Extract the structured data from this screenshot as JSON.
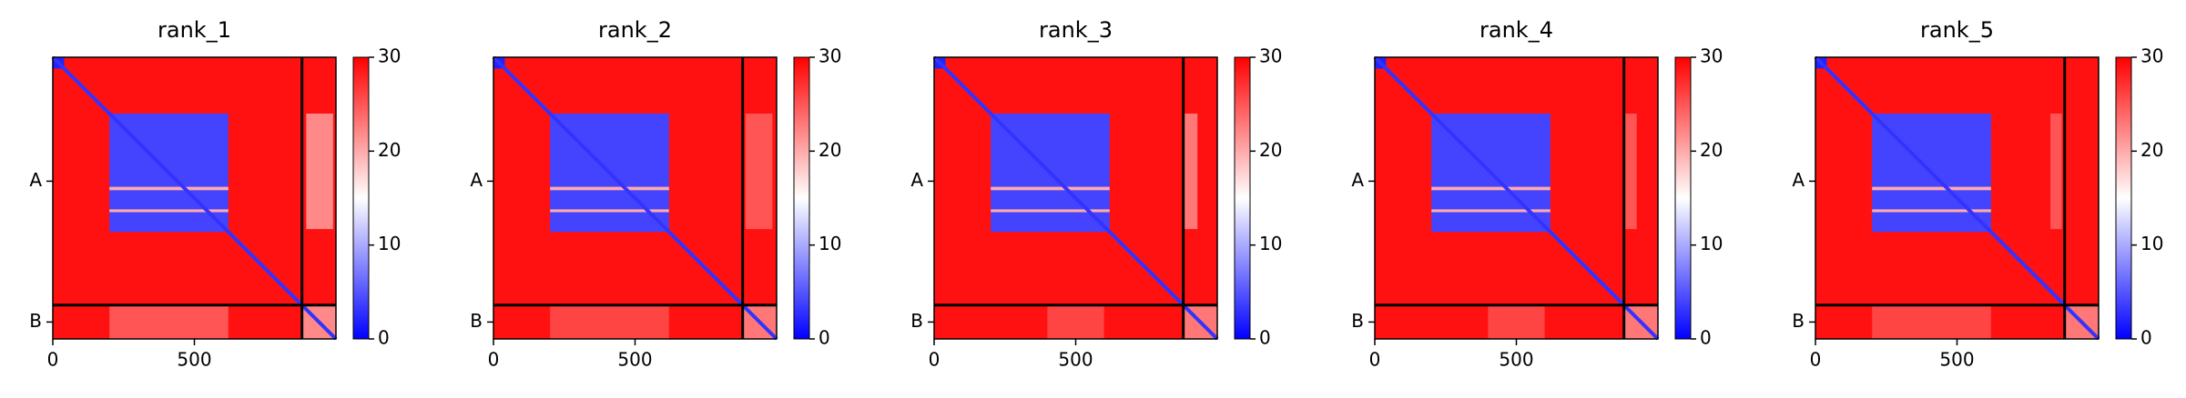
{
  "chart_data": [
    {
      "type": "heatmap",
      "title": "rank_1",
      "xlim": [
        0,
        1000
      ],
      "ylim": [
        1000,
        0
      ],
      "xticks": [
        0,
        500
      ],
      "yticks": [
        {
          "value": 440,
          "label": "A"
        },
        {
          "value": 940,
          "label": "B"
        }
      ],
      "colormap": "bwr",
      "clim": [
        0,
        30
      ],
      "cticks": [
        0,
        10,
        20,
        30
      ],
      "chain_breaks": [
        880
      ],
      "blocks": [
        {
          "x": [
            0,
            1000
          ],
          "y": [
            0,
            1000
          ],
          "value": 29
        },
        {
          "x": [
            0,
            40
          ],
          "y": [
            0,
            40
          ],
          "value": 2
        },
        {
          "x": [
            200,
            620
          ],
          "y": [
            200,
            620
          ],
          "value": 4
        },
        {
          "x": [
            200,
            620
          ],
          "y": [
            460,
            472
          ],
          "value": 20
        },
        {
          "x": [
            200,
            620
          ],
          "y": [
            540,
            550
          ],
          "value": 20
        },
        {
          "x": [
            895,
            990
          ],
          "y": [
            200,
            610
          ],
          "value": 22
        },
        {
          "x": [
            200,
            620
          ],
          "y": [
            880,
            1000
          ],
          "value": 25
        },
        {
          "x": [
            880,
            1000
          ],
          "y": [
            880,
            1000
          ],
          "value": 22
        }
      ],
      "diagonal": 3
    },
    {
      "type": "heatmap",
      "title": "rank_2",
      "xlim": [
        0,
        1000
      ],
      "ylim": [
        1000,
        0
      ],
      "xticks": [
        0,
        500
      ],
      "yticks": [
        {
          "value": 440,
          "label": "A"
        },
        {
          "value": 940,
          "label": "B"
        }
      ],
      "colormap": "bwr",
      "clim": [
        0,
        30
      ],
      "cticks": [
        0,
        10,
        20,
        30
      ],
      "chain_breaks": [
        880
      ],
      "blocks": [
        {
          "x": [
            0,
            1000
          ],
          "y": [
            0,
            1000
          ],
          "value": 29
        },
        {
          "x": [
            0,
            40
          ],
          "y": [
            0,
            40
          ],
          "value": 2
        },
        {
          "x": [
            200,
            620
          ],
          "y": [
            200,
            620
          ],
          "value": 4
        },
        {
          "x": [
            200,
            620
          ],
          "y": [
            460,
            472
          ],
          "value": 20
        },
        {
          "x": [
            200,
            620
          ],
          "y": [
            540,
            550
          ],
          "value": 20
        },
        {
          "x": [
            890,
            985
          ],
          "y": [
            200,
            610
          ],
          "value": 25
        },
        {
          "x": [
            200,
            620
          ],
          "y": [
            880,
            1000
          ],
          "value": 26
        },
        {
          "x": [
            880,
            1000
          ],
          "y": [
            880,
            1000
          ],
          "value": 23
        }
      ],
      "diagonal": 3
    },
    {
      "type": "heatmap",
      "title": "rank_3",
      "xlim": [
        0,
        1000
      ],
      "ylim": [
        1000,
        0
      ],
      "xticks": [
        0,
        500
      ],
      "yticks": [
        {
          "value": 440,
          "label": "A"
        },
        {
          "value": 940,
          "label": "B"
        }
      ],
      "colormap": "bwr",
      "clim": [
        0,
        30
      ],
      "cticks": [
        0,
        10,
        20,
        30
      ],
      "chain_breaks": [
        880
      ],
      "blocks": [
        {
          "x": [
            0,
            1000
          ],
          "y": [
            0,
            1000
          ],
          "value": 29
        },
        {
          "x": [
            0,
            40
          ],
          "y": [
            0,
            40
          ],
          "value": 2
        },
        {
          "x": [
            200,
            620
          ],
          "y": [
            200,
            620
          ],
          "value": 4
        },
        {
          "x": [
            200,
            620
          ],
          "y": [
            460,
            472
          ],
          "value": 20
        },
        {
          "x": [
            200,
            620
          ],
          "y": [
            540,
            550
          ],
          "value": 20
        },
        {
          "x": [
            880,
            930
          ],
          "y": [
            200,
            610
          ],
          "value": 23
        },
        {
          "x": [
            400,
            600
          ],
          "y": [
            880,
            1000
          ],
          "value": 26
        },
        {
          "x": [
            880,
            1000
          ],
          "y": [
            880,
            1000
          ],
          "value": 23
        }
      ],
      "diagonal": 3
    },
    {
      "type": "heatmap",
      "title": "rank_4",
      "xlim": [
        0,
        1000
      ],
      "ylim": [
        1000,
        0
      ],
      "xticks": [
        0,
        500
      ],
      "yticks": [
        {
          "value": 440,
          "label": "A"
        },
        {
          "value": 940,
          "label": "B"
        }
      ],
      "colormap": "bwr",
      "clim": [
        0,
        30
      ],
      "cticks": [
        0,
        10,
        20,
        30
      ],
      "chain_breaks": [
        880
      ],
      "blocks": [
        {
          "x": [
            0,
            1000
          ],
          "y": [
            0,
            1000
          ],
          "value": 29
        },
        {
          "x": [
            0,
            40
          ],
          "y": [
            0,
            40
          ],
          "value": 2
        },
        {
          "x": [
            200,
            620
          ],
          "y": [
            200,
            620
          ],
          "value": 4
        },
        {
          "x": [
            200,
            620
          ],
          "y": [
            460,
            472
          ],
          "value": 20
        },
        {
          "x": [
            200,
            620
          ],
          "y": [
            540,
            550
          ],
          "value": 20
        },
        {
          "x": [
            880,
            925
          ],
          "y": [
            200,
            610
          ],
          "value": 25
        },
        {
          "x": [
            400,
            600
          ],
          "y": [
            880,
            1000
          ],
          "value": 26
        },
        {
          "x": [
            880,
            1000
          ],
          "y": [
            880,
            1000
          ],
          "value": 23
        }
      ],
      "diagonal": 3
    },
    {
      "type": "heatmap",
      "title": "rank_5",
      "xlim": [
        0,
        1000
      ],
      "ylim": [
        1000,
        0
      ],
      "xticks": [
        0,
        500
      ],
      "yticks": [
        {
          "value": 440,
          "label": "A"
        },
        {
          "value": 940,
          "label": "B"
        }
      ],
      "colormap": "bwr",
      "clim": [
        0,
        30
      ],
      "cticks": [
        0,
        10,
        20,
        30
      ],
      "chain_breaks": [
        880
      ],
      "blocks": [
        {
          "x": [
            0,
            1000
          ],
          "y": [
            0,
            1000
          ],
          "value": 29
        },
        {
          "x": [
            0,
            40
          ],
          "y": [
            0,
            40
          ],
          "value": 2
        },
        {
          "x": [
            200,
            620
          ],
          "y": [
            200,
            620
          ],
          "value": 4
        },
        {
          "x": [
            200,
            620
          ],
          "y": [
            460,
            472
          ],
          "value": 20
        },
        {
          "x": [
            200,
            620
          ],
          "y": [
            540,
            550
          ],
          "value": 20
        },
        {
          "x": [
            830,
            870
          ],
          "y": [
            200,
            610
          ],
          "value": 25
        },
        {
          "x": [
            200,
            620
          ],
          "y": [
            880,
            1000
          ],
          "value": 26
        },
        {
          "x": [
            880,
            1000
          ],
          "y": [
            880,
            1000
          ],
          "value": 23
        }
      ],
      "diagonal": 3
    }
  ]
}
